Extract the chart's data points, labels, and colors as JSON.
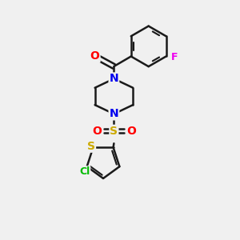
{
  "background_color": "#f0f0f0",
  "bond_color": "#1a1a1a",
  "bond_width": 1.8,
  "atom_colors": {
    "O": "#ff0000",
    "N": "#0000ee",
    "S_sulfonyl": "#ccaa00",
    "S_thio": "#ccaa00",
    "F": "#ee00ee",
    "Cl": "#00bb00",
    "C": "#1a1a1a"
  },
  "figsize": [
    3.0,
    3.0
  ],
  "dpi": 100
}
